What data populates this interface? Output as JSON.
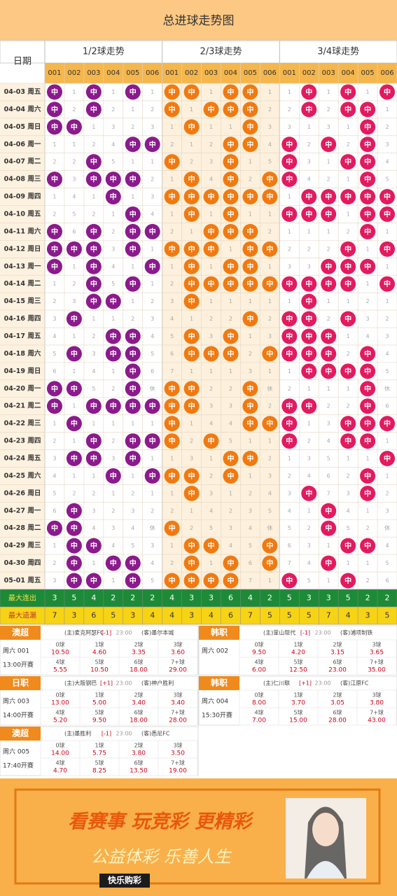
{
  "header": {
    "title": "总进球走势图"
  },
  "table": {
    "date_header": "日期",
    "groups": [
      "1/2球走势",
      "2/3球走势",
      "3/4球走势"
    ],
    "columns": [
      "001",
      "002",
      "003",
      "004",
      "005",
      "006"
    ],
    "rows": [
      {
        "date": "04-03 周五",
        "cells": [
          "中",
          "1",
          "中",
          "1",
          "中",
          "1",
          "中",
          "中",
          "1",
          "中",
          "中",
          "1",
          "1",
          "中",
          "1",
          "中",
          "1",
          "中"
        ]
      },
      {
        "date": "04-04 周六",
        "cells": [
          "中",
          "2",
          "中",
          "2",
          "1",
          "2",
          "中",
          "1",
          "中",
          "中",
          "中",
          "2",
          "2",
          "中",
          "2",
          "中",
          "中",
          "1"
        ]
      },
      {
        "date": "04-05 周日",
        "cells": [
          "中",
          "中",
          "1",
          "3",
          "2",
          "3",
          "1",
          "中",
          "1",
          "1",
          "中",
          "3",
          "3",
          "1",
          "3",
          "1",
          "中",
          "2"
        ]
      },
      {
        "date": "04-06 周一",
        "cells": [
          "1",
          "1",
          "2",
          "4",
          "中",
          "中",
          "2",
          "1",
          "2",
          "中",
          "中",
          "4",
          "中",
          "2",
          "中",
          "2",
          "中",
          "3"
        ]
      },
      {
        "date": "04-07 周二",
        "cells": [
          "2",
          "2",
          "中",
          "5",
          "1",
          "1",
          "中",
          "2",
          "3",
          "中",
          "1",
          "5",
          "中",
          "3",
          "1",
          "中",
          "中",
          "4"
        ]
      },
      {
        "date": "04-08 周三",
        "cells": [
          "中",
          "3",
          "中",
          "中",
          "中",
          "2",
          "1",
          "中",
          "4",
          "中",
          "2",
          "中",
          "中",
          "4",
          "2",
          "1",
          "中",
          "5"
        ]
      },
      {
        "date": "04-09 周四",
        "cells": [
          "1",
          "4",
          "1",
          "中",
          "1",
          "3",
          "中",
          "中",
          "中",
          "中",
          "中",
          "中",
          "1",
          "中",
          "中",
          "中",
          "中",
          "中"
        ]
      },
      {
        "date": "04-10 周五",
        "cells": [
          "2",
          "5",
          "2",
          "1",
          "中",
          "4",
          "1",
          "中",
          "1",
          "中",
          "1",
          "1",
          "中",
          "中",
          "中",
          "1",
          "中",
          "中"
        ]
      },
      {
        "date": "04-11 周六",
        "cells": [
          "中",
          "6",
          "中",
          "2",
          "中",
          "中",
          "2",
          "1",
          "中",
          "中",
          "中",
          "2",
          "1",
          "1",
          "1",
          "2",
          "中",
          "1"
        ]
      },
      {
        "date": "04-12 周日",
        "cells": [
          "中",
          "中",
          "中",
          "3",
          "中",
          "1",
          "中",
          "中",
          "中",
          "1",
          "中",
          "中",
          "2",
          "2",
          "2",
          "中",
          "1",
          "中"
        ]
      },
      {
        "date": "04-13 周一",
        "cells": [
          "中",
          "1",
          "中",
          "4",
          "1",
          "中",
          "1",
          "中",
          "1",
          "中",
          "中",
          "1",
          "3",
          "3",
          "中",
          "中",
          "中",
          "1"
        ]
      },
      {
        "date": "04-14 周二",
        "cells": [
          "1",
          "2",
          "中",
          "5",
          "中",
          "1",
          "2",
          "中",
          "中",
          "中",
          "中",
          "中",
          "中",
          "中",
          "中",
          "中",
          "1",
          "中"
        ]
      },
      {
        "date": "04-15 周三",
        "cells": [
          "2",
          "3",
          "中",
          "中",
          "1",
          "2",
          "3",
          "中",
          "1",
          "1",
          "1",
          "1",
          "1",
          "中",
          "1",
          "1",
          "2",
          "1"
        ]
      },
      {
        "date": "04-16 周四",
        "cells": [
          "3",
          "中",
          "1",
          "1",
          "2",
          "3",
          "4",
          "1",
          "2",
          "2",
          "中",
          "2",
          "中",
          "中",
          "2",
          "中",
          "3",
          "2"
        ]
      },
      {
        "date": "04-17 周五",
        "cells": [
          "4",
          "1",
          "2",
          "中",
          "中",
          "4",
          "5",
          "中",
          "3",
          "中",
          "1",
          "3",
          "中",
          "中",
          "中",
          "1",
          "4",
          "3"
        ]
      },
      {
        "date": "04-18 周六",
        "cells": [
          "5",
          "中",
          "3",
          "中",
          "中",
          "5",
          "6",
          "中",
          "中",
          "中",
          "2",
          "中",
          "中",
          "中",
          "中",
          "2",
          "中",
          "4"
        ]
      },
      {
        "date": "04-19 周日",
        "cells": [
          "6",
          "1",
          "4",
          "1",
          "中",
          "6",
          "7",
          "1",
          "1",
          "1",
          "3",
          "1",
          "1",
          "中",
          "中",
          "中",
          "中",
          "5"
        ]
      },
      {
        "date": "04-20 周一",
        "cells": [
          "中",
          "中",
          "5",
          "2",
          "中",
          "休",
          "中",
          "中",
          "2",
          "2",
          "中",
          "休",
          "2",
          "1",
          "1",
          "1",
          "中",
          "休"
        ]
      },
      {
        "date": "04-21 周二",
        "cells": [
          "中",
          "1",
          "中",
          "中",
          "中",
          "中",
          "中",
          "中",
          "3",
          "3",
          "中",
          "2",
          "中",
          "中",
          "2",
          "2",
          "中",
          "6"
        ]
      },
      {
        "date": "04-22 周三",
        "cells": [
          "1",
          "中",
          "1",
          "1",
          "1",
          "1",
          "中",
          "1",
          "4",
          "4",
          "中",
          "中",
          "中",
          "1",
          "3",
          "中",
          "中",
          "中"
        ]
      },
      {
        "date": "04-23 周四",
        "cells": [
          "2",
          "1",
          "中",
          "2",
          "中",
          "中",
          "中",
          "2",
          "中",
          "5",
          "1",
          "1",
          "中",
          "2",
          "4",
          "中",
          "中",
          "1"
        ]
      },
      {
        "date": "04-24 周五",
        "cells": [
          "3",
          "中",
          "中",
          "3",
          "中",
          "1",
          "1",
          "3",
          "1",
          "中",
          "中",
          "2",
          "1",
          "3",
          "5",
          "1",
          "1",
          "中"
        ]
      },
      {
        "date": "04-25 周六",
        "cells": [
          "4",
          "1",
          "1",
          "中",
          "1",
          "中",
          "中",
          "中",
          "2",
          "中",
          "1",
          "3",
          "2",
          "4",
          "6",
          "2",
          "中",
          "1"
        ]
      },
      {
        "date": "04-26 周日",
        "cells": [
          "5",
          "2",
          "2",
          "1",
          "2",
          "1",
          "1",
          "中",
          "3",
          "1",
          "2",
          "4",
          "3",
          "中",
          "7",
          "3",
          "中",
          "2"
        ]
      },
      {
        "date": "04-27 周一",
        "cells": [
          "6",
          "中",
          "3",
          "2",
          "3",
          "2",
          "2",
          "1",
          "4",
          "2",
          "3",
          "5",
          "4",
          "1",
          "中",
          "4",
          "1",
          "3"
        ]
      },
      {
        "date": "04-28 周二",
        "cells": [
          "中",
          "中",
          "4",
          "3",
          "4",
          "休",
          "中",
          "2",
          "5",
          "3",
          "4",
          "休",
          "5",
          "2",
          "中",
          "5",
          "2",
          "休"
        ]
      },
      {
        "date": "04-29 周三",
        "cells": [
          "1",
          "中",
          "中",
          "4",
          "5",
          "3",
          "1",
          "中",
          "中",
          "4",
          "5",
          "中",
          "6",
          "3",
          "1",
          "中",
          "中",
          "4"
        ]
      },
      {
        "date": "04-30 周四",
        "cells": [
          "2",
          "中",
          "1",
          "中",
          "中",
          "4",
          "2",
          "中",
          "1",
          "中",
          "6",
          "中",
          "7",
          "4",
          "中",
          "1",
          "1",
          "5"
        ]
      },
      {
        "date": "05-01 周五",
        "cells": [
          "3",
          "中",
          "中",
          "1",
          "中",
          "5",
          "中",
          "中",
          "中",
          "中",
          "7",
          "1",
          "中",
          "5",
          "1",
          "中",
          "2",
          "6"
        ]
      }
    ],
    "summary": [
      {
        "label": "最大连出",
        "values": [
          "3",
          "5",
          "4",
          "2",
          "2",
          "2",
          "4",
          "3",
          "3",
          "6",
          "4",
          "2",
          "5",
          "3",
          "3",
          "5",
          "2",
          "2"
        ]
      },
      {
        "label": "最大遗漏",
        "values": [
          "7",
          "3",
          "6",
          "5",
          "3",
          "4",
          "4",
          "3",
          "4",
          "6",
          "7",
          "5",
          "5",
          "5",
          "7",
          "4",
          "3",
          "5"
        ]
      }
    ]
  },
  "matches": {
    "goal_labels": [
      "0球",
      "1球",
      "2球",
      "3球",
      "4球",
      "5球",
      "6球",
      "7+球"
    ],
    "items": [
      {
        "league": "澳超",
        "code": "周六 001",
        "start": "13:00开赛",
        "home": "(主)麦克阿瑟FC",
        "handicap": "[-1]",
        "time": "23:00",
        "away": "(客)墨尔本城",
        "odds": [
          "10.50",
          "4.60",
          "3.35",
          "3.60",
          "5.55",
          "10.50",
          "18.00",
          "29.00"
        ]
      },
      {
        "league": "韩职",
        "code": "周六 002",
        "home": "(主)釜山现代",
        "handicap": "[-1]",
        "time": "23:00",
        "away": "(客)浦项制铁",
        "odds": [
          "9.50",
          "4.20",
          "3.15",
          "3.65",
          "6.00",
          "12.50",
          "23.00",
          "35.00"
        ]
      },
      {
        "league": "日职",
        "code": "周六 003",
        "start": "14:00开赛",
        "home": "(主)大阪钢巴",
        "handicap": "[+1]",
        "time": "23:00",
        "away": "(客)神户胜利",
        "odds": [
          "13.00",
          "5.00",
          "3.40",
          "3.40",
          "5.20",
          "9.50",
          "18.00",
          "28.00"
        ]
      },
      {
        "league": "韩职",
        "code": "周六 004",
        "start": "15:30开赛",
        "home": "(主)仁川联",
        "handicap": "[+1]",
        "time": "23:00",
        "away": "(客)江原FC",
        "odds": [
          "8.00",
          "3.70",
          "3.05",
          "3.80",
          "7.00",
          "15.00",
          "28.00",
          "43.00"
        ]
      },
      {
        "league": "澳超",
        "code": "周六 005",
        "start": "17:40开赛",
        "home": "(主)墨胜利",
        "handicap": "[-1]",
        "time": "23:00",
        "away": "(客)悉尼FC",
        "odds": [
          "14.00",
          "5.75",
          "3.80",
          "3.50",
          "4.70",
          "8.25",
          "13.50",
          "19.00"
        ]
      }
    ]
  },
  "banner": {
    "slogan": "看赛事 玩竞彩 更精彩",
    "motto": "公益体彩 乐善人生",
    "brand": "快乐购彩"
  }
}
